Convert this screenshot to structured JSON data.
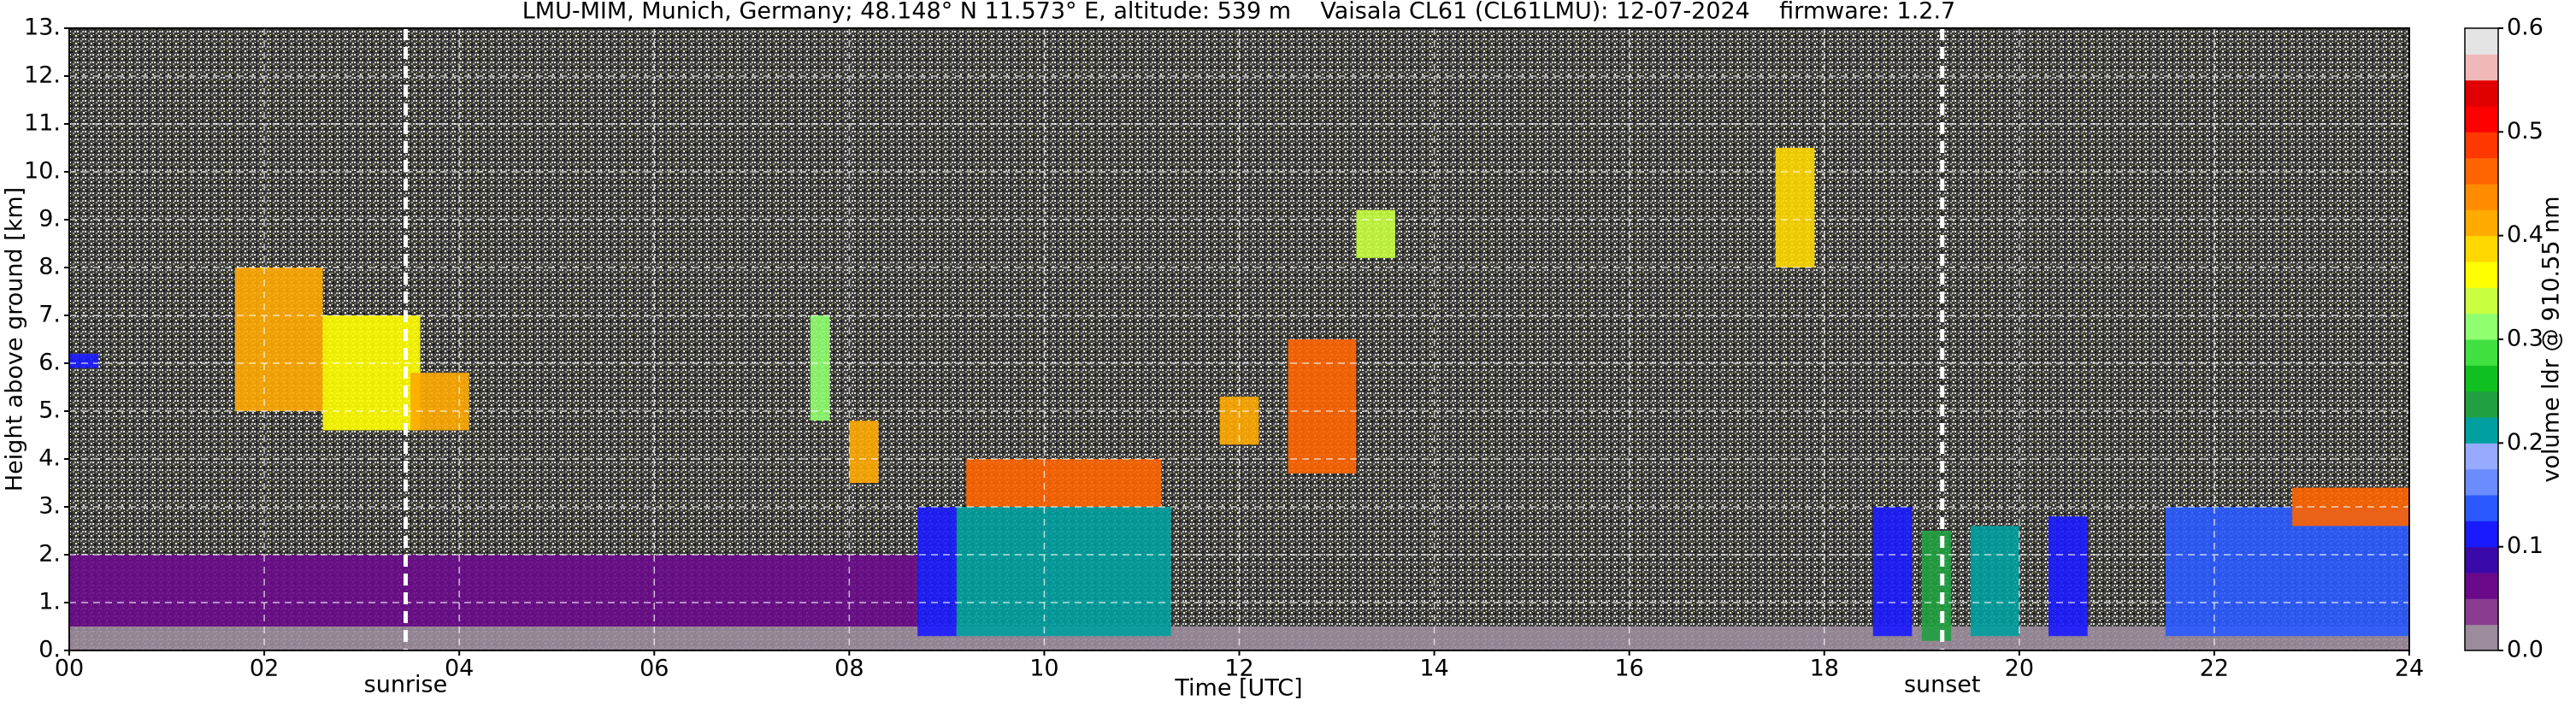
{
  "chart_data": {
    "type": "heatmap",
    "title": "LMU-MIM, Munich, Germany; 48.148° N 11.573° E, altitude: 539 m    Vaisala CL61 (CL61LMU): 12-07-2024    firmware: 1.2.7",
    "x_label": "Time [UTC]",
    "y_label": "Height above ground [km]",
    "xlim": [
      0,
      24
    ],
    "xticks": [
      {
        "value": 0,
        "label": "00"
      },
      {
        "value": 2,
        "label": "02"
      },
      {
        "value": 4,
        "label": "04"
      },
      {
        "value": 6,
        "label": "06"
      },
      {
        "value": 8,
        "label": "08"
      },
      {
        "value": 10,
        "label": "10"
      },
      {
        "value": 12,
        "label": "12"
      },
      {
        "value": 14,
        "label": "14"
      },
      {
        "value": 16,
        "label": "16"
      },
      {
        "value": 18,
        "label": "18"
      },
      {
        "value": 20,
        "label": "20"
      },
      {
        "value": 22,
        "label": "22"
      },
      {
        "value": 24,
        "label": "24"
      }
    ],
    "ylim": [
      0,
      13
    ],
    "yticks": [
      {
        "value": 0,
        "label": "0."
      },
      {
        "value": 1,
        "label": "1."
      },
      {
        "value": 2,
        "label": "2."
      },
      {
        "value": 3,
        "label": "3."
      },
      {
        "value": 4,
        "label": "4."
      },
      {
        "value": 5,
        "label": "5."
      },
      {
        "value": 6,
        "label": "6."
      },
      {
        "value": 7,
        "label": "7."
      },
      {
        "value": 8,
        "label": "8."
      },
      {
        "value": 9,
        "label": "9."
      },
      {
        "value": 10,
        "label": "10."
      },
      {
        "value": 11,
        "label": "11."
      },
      {
        "value": 12,
        "label": "12."
      },
      {
        "value": 13,
        "label": "13."
      }
    ],
    "grid": true,
    "markers": [
      {
        "label": "sunrise",
        "x": 3.45
      },
      {
        "label": "sunset",
        "x": 19.21
      }
    ],
    "colorbar": {
      "label": "volume ldr @ 910.55 nm",
      "lim": [
        0,
        0.6
      ],
      "ticks": [
        {
          "value": 0,
          "label": "0.0"
        },
        {
          "value": 0.1,
          "label": "0.1"
        },
        {
          "value": 0.2,
          "label": "0.2"
        },
        {
          "value": 0.3,
          "label": "0.3"
        },
        {
          "value": 0.4,
          "label": "0.4"
        },
        {
          "value": 0.5,
          "label": "0.5"
        },
        {
          "value": 0.6,
          "label": "0.6"
        }
      ],
      "colors": [
        "#9c8c9c",
        "#8a3c90",
        "#6a0a8a",
        "#3a0aa8",
        "#1a1aff",
        "#2a5aff",
        "#6a8cff",
        "#96aaff",
        "#00a0a0",
        "#20a040",
        "#10c020",
        "#40e040",
        "#90ff70",
        "#c8ff40",
        "#ffff00",
        "#ffd800",
        "#ffaa00",
        "#ff8c00",
        "#ff6400",
        "#ff3800",
        "#ff0000",
        "#e00000",
        "#f0b8b8",
        "#e4e4e4"
      ]
    },
    "regions": [
      {
        "x": [
          0,
          24
        ],
        "y": [
          0,
          0.5
        ],
        "value": 0.02
      },
      {
        "x": [
          0,
          8.7
        ],
        "y": [
          0.5,
          2
        ],
        "value": 0.07
      },
      {
        "x": [
          8.7,
          9.1
        ],
        "y": [
          0.3,
          3
        ],
        "value": 0.1
      },
      {
        "x": [
          9.1,
          11.3
        ],
        "y": [
          0.3,
          3
        ],
        "value": 0.22
      },
      {
        "x": [
          9.2,
          11.2
        ],
        "y": [
          3,
          4
        ],
        "value": 0.47
      },
      {
        "x": [
          1.7,
          2.6
        ],
        "y": [
          5,
          8
        ],
        "value": 0.4
      },
      {
        "x": [
          2.6,
          3.6
        ],
        "y": [
          4.6,
          7
        ],
        "value": 0.36
      },
      {
        "x": [
          3.5,
          4.1
        ],
        "y": [
          4.6,
          5.8
        ],
        "value": 0.42
      },
      {
        "x": [
          0,
          0.3
        ],
        "y": [
          5.9,
          6.2
        ],
        "value": 0.1
      },
      {
        "x": [
          7.6,
          7.8
        ],
        "y": [
          4.8,
          7
        ],
        "value": 0.32
      },
      {
        "x": [
          8,
          8.3
        ],
        "y": [
          3.5,
          4.8
        ],
        "value": 0.4
      },
      {
        "x": [
          11.8,
          12.2
        ],
        "y": [
          4.3,
          5.3
        ],
        "value": 0.4
      },
      {
        "x": [
          12.5,
          13.2
        ],
        "y": [
          3.7,
          6.5
        ],
        "value": 0.45
      },
      {
        "x": [
          13.2,
          13.6
        ],
        "y": [
          8.2,
          9.2
        ],
        "value": 0.33
      },
      {
        "x": [
          17.5,
          17.9
        ],
        "y": [
          8,
          10.5
        ],
        "value": 0.38
      },
      {
        "x": [
          18.5,
          18.9
        ],
        "y": [
          0.3,
          3
        ],
        "value": 0.12
      },
      {
        "x": [
          19,
          19.3
        ],
        "y": [
          0.2,
          2.5
        ],
        "value": 0.24
      },
      {
        "x": [
          19.5,
          20
        ],
        "y": [
          0.3,
          2.6
        ],
        "value": 0.22
      },
      {
        "x": [
          20.3,
          20.7
        ],
        "y": [
          0.3,
          2.8
        ],
        "value": 0.12
      },
      {
        "x": [
          21.5,
          24
        ],
        "y": [
          0.3,
          3
        ],
        "value": 0.13
      },
      {
        "x": [
          22.8,
          24
        ],
        "y": [
          2.6,
          3.4
        ],
        "value": 0.46
      }
    ]
  }
}
